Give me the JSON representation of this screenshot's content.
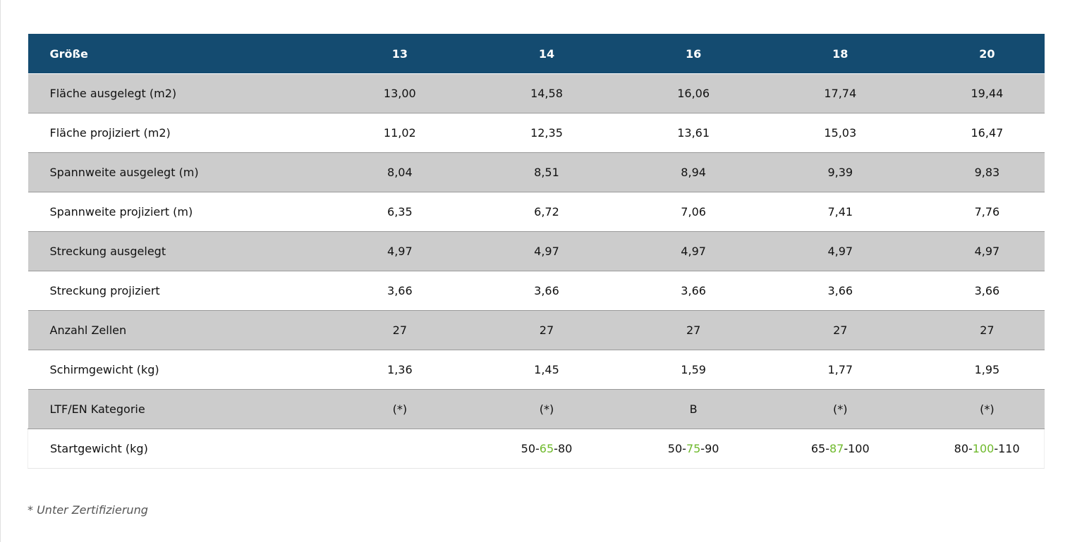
{
  "table": {
    "header": {
      "label": "Größe",
      "sizes": [
        "13",
        "14",
        "16",
        "18",
        "20"
      ]
    },
    "rows": [
      {
        "label": "Fläche ausgelegt (m2)",
        "values": [
          "13,00",
          "14,58",
          "16,06",
          "17,74",
          "19,44"
        ]
      },
      {
        "label": "Fläche projiziert (m2)",
        "values": [
          "11,02",
          "12,35",
          "13,61",
          "15,03",
          "16,47"
        ]
      },
      {
        "label": "Spannweite ausgelegt (m)",
        "values": [
          "8,04",
          "8,51",
          "8,94",
          "9,39",
          "9,83"
        ]
      },
      {
        "label": "Spannweite projiziert (m)",
        "values": [
          "6,35",
          "6,72",
          "7,06",
          "7,41",
          "7,76"
        ]
      },
      {
        "label": "Streckung ausgelegt",
        "values": [
          "4,97",
          "4,97",
          "4,97",
          "4,97",
          "4,97"
        ]
      },
      {
        "label": "Streckung projiziert",
        "values": [
          "3,66",
          "3,66",
          "3,66",
          "3,66",
          "3,66"
        ]
      },
      {
        "label": "Anzahl Zellen",
        "values": [
          "27",
          "27",
          "27",
          "27",
          "27"
        ]
      },
      {
        "label": "Schirmgewicht (kg)",
        "values": [
          "1,36",
          "1,45",
          "1,59",
          "1,77",
          "1,95"
        ]
      },
      {
        "label": "LTF/EN Kategorie",
        "values": [
          "(*)",
          "(*)",
          "B",
          "(*)",
          "(*)"
        ]
      }
    ],
    "weight_row": {
      "label": "Startgewicht (kg)",
      "values": [
        {
          "min": "",
          "opt": "",
          "max": ""
        },
        {
          "min": "50",
          "opt": "65",
          "max": "80"
        },
        {
          "min": "50",
          "opt": "75",
          "max": "90"
        },
        {
          "min": "65",
          "opt": "87",
          "max": "100"
        },
        {
          "min": "80",
          "opt": "100",
          "max": "110"
        }
      ],
      "separator": "-",
      "highlight_color": "#6fba2c"
    }
  },
  "footnote": "* Unter Zertifizierung",
  "colors": {
    "header_bg": "#144b70",
    "row_shade": "#cccccc",
    "row_plain": "#ffffff"
  }
}
